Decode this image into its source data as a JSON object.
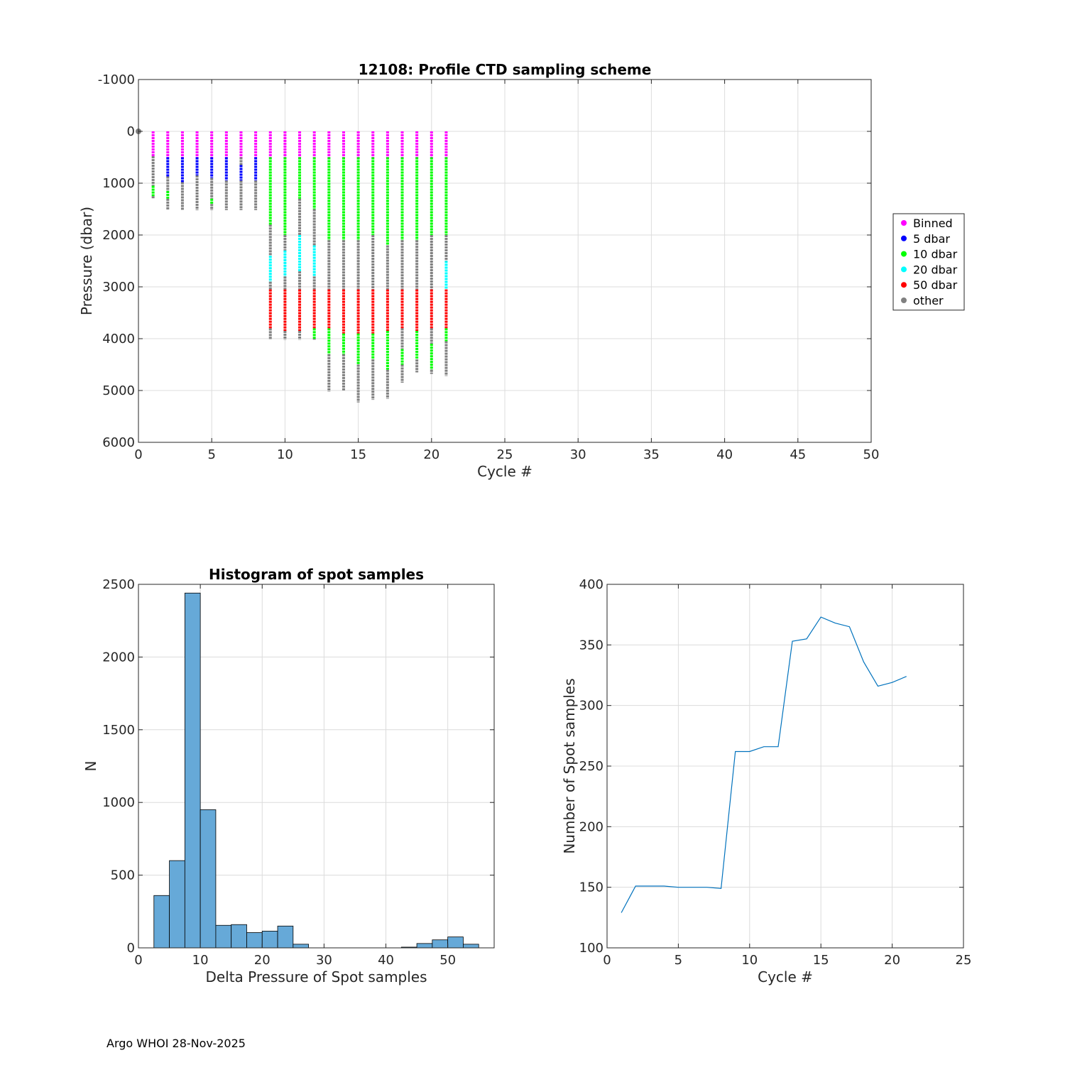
{
  "footer": "Argo WHOI 28-Nov-2025",
  "chart_data": [
    {
      "id": "scheme",
      "type": "scatter",
      "title": "12108: Profile CTD sampling scheme",
      "xlabel": "Cycle #",
      "ylabel": "Pressure (dbar)",
      "xlim": [
        0,
        50
      ],
      "ylim": [
        6000,
        -1000
      ],
      "y_reversed": true,
      "xticks": [
        0,
        5,
        10,
        15,
        20,
        25,
        30,
        35,
        40,
        45,
        50
      ],
      "yticks": [
        -1000,
        0,
        1000,
        2000,
        3000,
        4000,
        5000,
        6000
      ],
      "grid": true,
      "legend_position": "outside-right",
      "legend": [
        {
          "name": "Binned",
          "color": "#ff00ff"
        },
        {
          "name": "5 dbar",
          "color": "#0000ff"
        },
        {
          "name": "10 dbar",
          "color": "#00ff00"
        },
        {
          "name": "20 dbar",
          "color": "#00ffff"
        },
        {
          "name": "50 dbar",
          "color": "#ff0000"
        },
        {
          "name": "other",
          "color": "#808080"
        }
      ],
      "cycles": [
        {
          "cycle": 1,
          "segments": [
            [
              0,
              480,
              "#ff00ff"
            ],
            [
              480,
              1050,
              "#808080"
            ],
            [
              1050,
              1250,
              "#00ff00"
            ],
            [
              1250,
              1300,
              "#808080"
            ]
          ]
        },
        {
          "cycle": 2,
          "segments": [
            [
              0,
              500,
              "#ff00ff"
            ],
            [
              500,
              870,
              "#0000ff"
            ],
            [
              870,
              1150,
              "#808080"
            ],
            [
              1150,
              1300,
              "#00ff00"
            ],
            [
              1300,
              1520,
              "#808080"
            ]
          ]
        },
        {
          "cycle": 3,
          "segments": [
            [
              0,
              500,
              "#ff00ff"
            ],
            [
              500,
              980,
              "#0000ff"
            ],
            [
              980,
              1520,
              "#808080"
            ]
          ]
        },
        {
          "cycle": 4,
          "segments": [
            [
              0,
              500,
              "#ff00ff"
            ],
            [
              500,
              850,
              "#0000ff"
            ],
            [
              850,
              1520,
              "#808080"
            ]
          ]
        },
        {
          "cycle": 5,
          "segments": [
            [
              0,
              500,
              "#ff00ff"
            ],
            [
              500,
              900,
              "#0000ff"
            ],
            [
              900,
              1300,
              "#808080"
            ],
            [
              1300,
              1400,
              "#00ff00"
            ],
            [
              1400,
              1520,
              "#808080"
            ]
          ]
        },
        {
          "cycle": 6,
          "segments": [
            [
              0,
              500,
              "#ff00ff"
            ],
            [
              500,
              950,
              "#0000ff"
            ],
            [
              950,
              1520,
              "#808080"
            ]
          ]
        },
        {
          "cycle": 7,
          "segments": [
            [
              0,
              500,
              "#ff00ff"
            ],
            [
              500,
              650,
              "#808080"
            ],
            [
              650,
              950,
              "#0000ff"
            ],
            [
              950,
              1520,
              "#808080"
            ]
          ]
        },
        {
          "cycle": 8,
          "segments": [
            [
              0,
              500,
              "#ff00ff"
            ],
            [
              500,
              950,
              "#0000ff"
            ],
            [
              950,
              1520,
              "#808080"
            ]
          ]
        },
        {
          "cycle": 9,
          "segments": [
            [
              0,
              500,
              "#ff00ff"
            ],
            [
              500,
              1800,
              "#00ff00"
            ],
            [
              1800,
              2400,
              "#808080"
            ],
            [
              2400,
              2900,
              "#00ffff"
            ],
            [
              2900,
              3050,
              "#808080"
            ],
            [
              3050,
              3800,
              "#ff0000"
            ],
            [
              3800,
              4020,
              "#808080"
            ]
          ]
        },
        {
          "cycle": 10,
          "segments": [
            [
              0,
              500,
              "#ff00ff"
            ],
            [
              500,
              2000,
              "#00ff00"
            ],
            [
              2000,
              2300,
              "#808080"
            ],
            [
              2300,
              2800,
              "#00ffff"
            ],
            [
              2800,
              3050,
              "#808080"
            ],
            [
              3050,
              3850,
              "#ff0000"
            ],
            [
              3850,
              4020,
              "#808080"
            ]
          ]
        },
        {
          "cycle": 11,
          "segments": [
            [
              0,
              500,
              "#ff00ff"
            ],
            [
              500,
              1300,
              "#00ff00"
            ],
            [
              1300,
              2000,
              "#808080"
            ],
            [
              2000,
              2700,
              "#00ffff"
            ],
            [
              2700,
              3050,
              "#808080"
            ],
            [
              3050,
              3850,
              "#ff0000"
            ],
            [
              3850,
              4020,
              "#808080"
            ]
          ]
        },
        {
          "cycle": 12,
          "segments": [
            [
              0,
              500,
              "#ff00ff"
            ],
            [
              500,
              1500,
              "#00ff00"
            ],
            [
              1500,
              2200,
              "#808080"
            ],
            [
              2200,
              2800,
              "#00ffff"
            ],
            [
              2800,
              3050,
              "#808080"
            ],
            [
              3050,
              3800,
              "#ff0000"
            ],
            [
              3800,
              4000,
              "#00ff00"
            ],
            [
              4000,
              4020,
              "#808080"
            ]
          ]
        },
        {
          "cycle": 13,
          "segments": [
            [
              0,
              500,
              "#ff00ff"
            ],
            [
              500,
              2100,
              "#00ff00"
            ],
            [
              2100,
              3050,
              "#808080"
            ],
            [
              3050,
              3800,
              "#ff0000"
            ],
            [
              3800,
              4300,
              "#00ff00"
            ],
            [
              4300,
              5020,
              "#808080"
            ]
          ]
        },
        {
          "cycle": 14,
          "segments": [
            [
              0,
              500,
              "#ff00ff"
            ],
            [
              500,
              2100,
              "#00ff00"
            ],
            [
              2100,
              3050,
              "#808080"
            ],
            [
              3050,
              3900,
              "#ff0000"
            ],
            [
              3900,
              4300,
              "#00ff00"
            ],
            [
              4300,
              5000,
              "#808080"
            ]
          ]
        },
        {
          "cycle": 15,
          "segments": [
            [
              0,
              500,
              "#ff00ff"
            ],
            [
              500,
              2100,
              "#00ff00"
            ],
            [
              2100,
              3050,
              "#808080"
            ],
            [
              3050,
              3900,
              "#ff0000"
            ],
            [
              3900,
              4500,
              "#00ff00"
            ],
            [
              4500,
              5230,
              "#808080"
            ]
          ]
        },
        {
          "cycle": 16,
          "segments": [
            [
              0,
              500,
              "#ff00ff"
            ],
            [
              500,
              2000,
              "#00ff00"
            ],
            [
              2000,
              3050,
              "#808080"
            ],
            [
              3050,
              3900,
              "#ff0000"
            ],
            [
              3900,
              4400,
              "#00ff00"
            ],
            [
              4400,
              5180,
              "#808080"
            ]
          ]
        },
        {
          "cycle": 17,
          "segments": [
            [
              0,
              500,
              "#ff00ff"
            ],
            [
              500,
              2200,
              "#00ff00"
            ],
            [
              2200,
              3050,
              "#808080"
            ],
            [
              3050,
              3850,
              "#ff0000"
            ],
            [
              3850,
              4600,
              "#00ff00"
            ],
            [
              4600,
              5160,
              "#808080"
            ]
          ]
        },
        {
          "cycle": 18,
          "segments": [
            [
              0,
              500,
              "#ff00ff"
            ],
            [
              500,
              2100,
              "#00ff00"
            ],
            [
              2100,
              3050,
              "#808080"
            ],
            [
              3050,
              3800,
              "#ff0000"
            ],
            [
              3800,
              4200,
              "#808080"
            ],
            [
              4200,
              4500,
              "#00ff00"
            ],
            [
              4500,
              4850,
              "#808080"
            ]
          ]
        },
        {
          "cycle": 19,
          "segments": [
            [
              0,
              500,
              "#ff00ff"
            ],
            [
              500,
              2100,
              "#00ff00"
            ],
            [
              2100,
              3050,
              "#808080"
            ],
            [
              3050,
              3850,
              "#ff0000"
            ],
            [
              3850,
              4400,
              "#00ff00"
            ],
            [
              4400,
              4650,
              "#808080"
            ]
          ]
        },
        {
          "cycle": 20,
          "segments": [
            [
              0,
              500,
              "#ff00ff"
            ],
            [
              500,
              2000,
              "#00ff00"
            ],
            [
              2000,
              3050,
              "#808080"
            ],
            [
              3050,
              3800,
              "#ff0000"
            ],
            [
              3800,
              4100,
              "#808080"
            ],
            [
              4100,
              4600,
              "#00ff00"
            ],
            [
              4600,
              4680,
              "#808080"
            ]
          ]
        },
        {
          "cycle": 21,
          "segments": [
            [
              0,
              500,
              "#ff00ff"
            ],
            [
              500,
              2000,
              "#00ff00"
            ],
            [
              2000,
              2500,
              "#808080"
            ],
            [
              2500,
              3050,
              "#00ffff"
            ],
            [
              3050,
              3800,
              "#ff0000"
            ],
            [
              3800,
              4050,
              "#00ff00"
            ],
            [
              4050,
              4720,
              "#808080"
            ]
          ]
        }
      ],
      "extra_points": [
        {
          "x": 0,
          "y": 0,
          "color": "#808080"
        }
      ]
    },
    {
      "id": "hist",
      "type": "bar",
      "title": "Histogram of spot samples",
      "xlabel": "Delta Pressure of Spot samples",
      "ylabel": "N",
      "xlim": [
        0,
        57.5
      ],
      "ylim": [
        0,
        2500
      ],
      "xticks": [
        0,
        10,
        20,
        30,
        40,
        50
      ],
      "yticks": [
        0,
        500,
        1000,
        1500,
        2000,
        2500
      ],
      "grid": true,
      "bar_color": "#66a9d8",
      "bin_edges": [
        2.5,
        5,
        7.5,
        10,
        12.5,
        15,
        17.5,
        20,
        22.5,
        25,
        27.5,
        30,
        32.5,
        35,
        37.5,
        40,
        42.5,
        45,
        47.5,
        50,
        52.5,
        55
      ],
      "values": [
        360,
        600,
        2440,
        950,
        155,
        160,
        105,
        115,
        150,
        25,
        0,
        0,
        0,
        0,
        0,
        0,
        5,
        30,
        55,
        75,
        25
      ]
    },
    {
      "id": "spots",
      "type": "line",
      "title": "",
      "xlabel": "Cycle #",
      "ylabel": "Number of Spot samples",
      "xlim": [
        0,
        25
      ],
      "ylim": [
        100,
        400
      ],
      "xticks": [
        0,
        5,
        10,
        15,
        20,
        25
      ],
      "yticks": [
        100,
        150,
        200,
        250,
        300,
        350,
        400
      ],
      "grid": true,
      "line_color": "#0072bd",
      "x": [
        1,
        2,
        3,
        4,
        5,
        6,
        7,
        8,
        9,
        10,
        11,
        12,
        13,
        14,
        15,
        16,
        17,
        18,
        19,
        20,
        21
      ],
      "y": [
        129,
        151,
        151,
        151,
        150,
        150,
        150,
        149,
        262,
        262,
        266,
        266,
        353,
        355,
        373,
        368,
        365,
        336,
        316,
        319,
        324
      ]
    }
  ]
}
